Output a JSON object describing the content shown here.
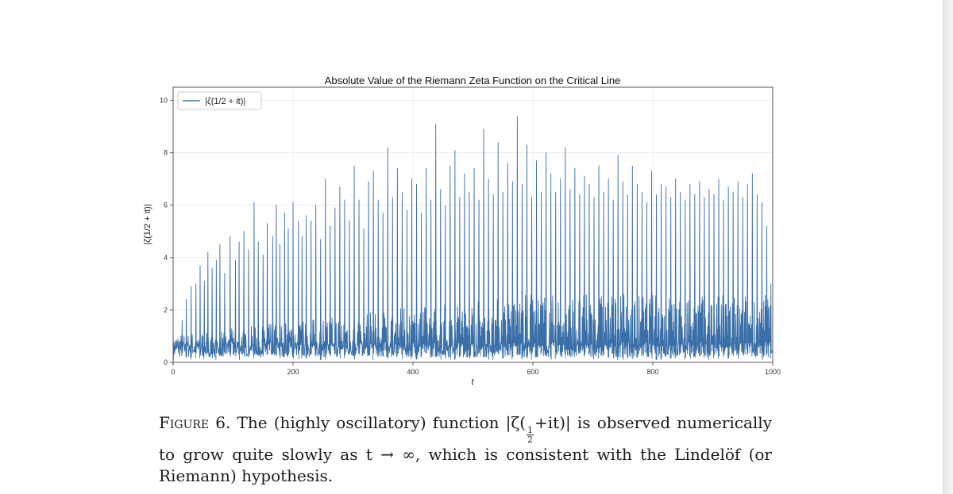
{
  "chart_data": {
    "type": "line",
    "title": "Absolute Value of the Riemann Zeta Function on the Critical Line",
    "xlabel": "t",
    "ylabel": "|ζ(1/2 + it)|",
    "xlim": [
      0,
      1000
    ],
    "ylim": [
      0,
      10.5
    ],
    "xticks": [
      0,
      200,
      400,
      600,
      800,
      1000
    ],
    "yticks": [
      0,
      2,
      4,
      6,
      8,
      10
    ],
    "grid": true,
    "legend_position": "top-left",
    "series": [
      {
        "name": "|ζ(1/2 + it)|",
        "color": "#3a6fa8",
        "peaks_x": [
          15,
          22,
          30,
          38,
          45,
          52,
          58,
          65,
          72,
          78,
          86,
          95,
          104,
          110,
          118,
          126,
          135,
          142,
          150,
          157,
          166,
          172,
          178,
          186,
          192,
          200,
          209,
          215,
          222,
          230,
          238,
          246,
          254,
          262,
          270,
          278,
          286,
          294,
          302,
          310,
          318,
          326,
          334,
          342,
          350,
          358,
          366,
          374,
          382,
          390,
          398,
          406,
          414,
          422,
          430,
          438,
          446,
          454,
          462,
          470,
          478,
          486,
          494,
          502,
          510,
          518,
          526,
          534,
          542,
          550,
          558,
          566,
          574,
          582,
          590,
          598,
          606,
          614,
          622,
          630,
          638,
          646,
          654,
          662,
          670,
          678,
          686,
          694,
          702,
          710,
          718,
          726,
          734,
          742,
          750,
          758,
          766,
          774,
          782,
          790,
          798,
          806,
          814,
          822,
          830,
          838,
          846,
          854,
          862,
          870,
          878,
          886,
          894,
          902,
          910,
          918,
          926,
          934,
          942,
          950,
          958,
          966,
          974,
          982,
          990,
          997
        ],
        "peaks_y": [
          1.6,
          2.4,
          2.9,
          3.0,
          3.7,
          3.1,
          4.2,
          3.6,
          3.9,
          4.5,
          3.4,
          4.8,
          3.9,
          4.6,
          5.0,
          4.3,
          6.1,
          4.6,
          4.1,
          5.3,
          4.8,
          6.0,
          4.5,
          5.7,
          5.1,
          6.1,
          5.4,
          4.8,
          5.6,
          5.4,
          6.0,
          4.7,
          7.0,
          5.2,
          5.9,
          6.7,
          6.2,
          5.4,
          7.5,
          6.2,
          5.1,
          6.9,
          7.3,
          6.2,
          5.7,
          8.2,
          6.3,
          7.4,
          6.5,
          5.8,
          7.0,
          6.8,
          5.7,
          7.4,
          6.2,
          9.1,
          6.6,
          6.0,
          7.5,
          8.1,
          6.3,
          7.2,
          6.5,
          7.4,
          6.2,
          8.9,
          7.0,
          6.4,
          8.4,
          6.5,
          7.6,
          6.9,
          9.4,
          6.8,
          8.3,
          6.3,
          7.7,
          6.5,
          8.0,
          7.2,
          6.5,
          7.0,
          8.2,
          6.6,
          7.4,
          6.4,
          7.1,
          6.8,
          6.3,
          7.5,
          6.5,
          7.0,
          6.2,
          7.9,
          6.9,
          6.4,
          7.5,
          6.8,
          6.5,
          6.1,
          7.3,
          6.4,
          6.8,
          6.7,
          6.3,
          7.0,
          6.5,
          6.2,
          6.8,
          6.4,
          6.9,
          6.3,
          6.6,
          6.4,
          7.0,
          6.2,
          6.7,
          6.5,
          6.9,
          6.3,
          6.8,
          7.2,
          6.4,
          6.1,
          5.2,
          3.0
        ],
        "baseline_band": [
          0.2,
          2.6
        ]
      }
    ]
  },
  "caption": {
    "label": "Figure 6.",
    "text_before_fraction": "The (highly oscillatory) function |ζ(",
    "fraction_numerator": "1",
    "fraction_denominator": "2",
    "text_after_fraction": "+it)| is observed numerically to grow quite slowly as t → ∞, which is consistent with the Lindelöf (or Riemann) hypothesis."
  }
}
